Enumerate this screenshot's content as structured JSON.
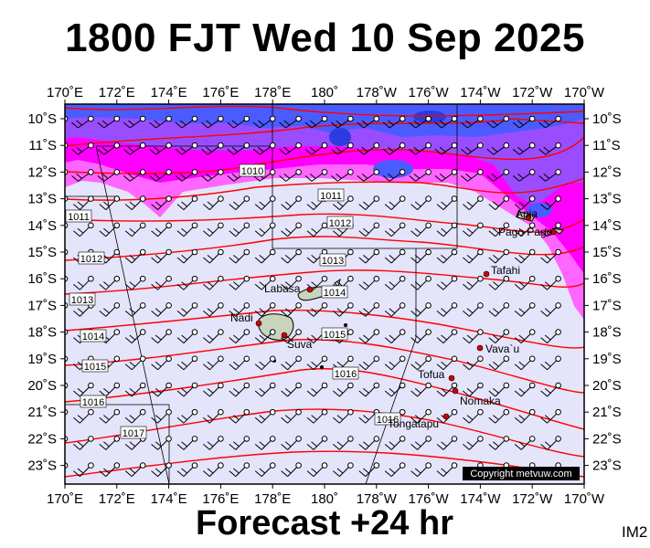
{
  "title": "1800 FJT Wed 10 Sep 2025",
  "footer": "Forecast +24 hr",
  "image_code": "IM2",
  "copyright": "Copyright metvuw.com",
  "map": {
    "lon_labels": [
      "170˚E",
      "172˚E",
      "174˚E",
      "176˚E",
      "178˚E",
      "180˚",
      "178˚W",
      "176˚W",
      "174˚W",
      "172˚W",
      "170˚W"
    ],
    "lat_labels": [
      "10˚S",
      "11˚S",
      "12˚S",
      "13˚S",
      "14˚S",
      "15˚S",
      "16˚S",
      "17˚S",
      "18˚S",
      "19˚S",
      "20˚S",
      "21˚S",
      "22˚S",
      "23˚S"
    ],
    "isobar_labels": [
      "1010",
      "1011",
      "1011",
      "1012",
      "1012",
      "1013",
      "1013",
      "1014",
      "1014",
      "1015",
      "1015",
      "1016",
      "1016",
      "1016",
      "1017",
      "1017"
    ],
    "places": [
      "Apia",
      "Pago Pago",
      "Tafahi",
      "Labasa",
      "Nadi",
      "Suva",
      "Vava`u",
      "Tofua",
      "Nomaka",
      "Tongatapu"
    ],
    "colors": {
      "background": "#e4e4fb",
      "rain_light": "#ff66ff",
      "rain_magenta": "#ff00ff",
      "rain_violet": "#9a4dff",
      "rain_blue": "#4a5cff",
      "isobar": "#ff0000",
      "land": "#c8d4bc"
    }
  }
}
